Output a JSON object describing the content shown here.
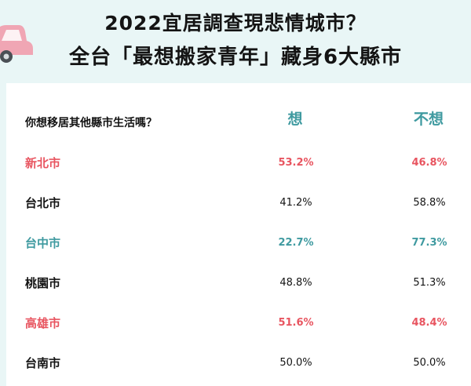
{
  "title_line1": "2022宜居調查現悲情城市？",
  "title_line2": "全台「最想搬家青年」藏身6大縣市",
  "chart_data": {
    "type": "table",
    "question": "你想移居其他縣市生活嗎？",
    "columns": [
      "想",
      "不想"
    ],
    "rows": [
      {
        "city": "新北市",
        "want": "53.2%",
        "not_want": "46.8%",
        "color": "#e85560",
        "highlight": true
      },
      {
        "city": "台北市",
        "want": "41.2%",
        "not_want": "58.8%",
        "color": "#141414",
        "highlight": false
      },
      {
        "city": "台中市",
        "want": "22.7%",
        "not_want": "77.3%",
        "color": "#3f9aa0",
        "highlight": true
      },
      {
        "city": "桃園市",
        "want": "48.8%",
        "not_want": "51.3%",
        "color": "#141414",
        "highlight": false
      },
      {
        "city": "高雄市",
        "want": "51.6%",
        "not_want": "48.4%",
        "color": "#e85560",
        "highlight": true
      },
      {
        "city": "台南市",
        "want": "50.0%",
        "not_want": "50.0%",
        "color": "#141414",
        "highlight": false
      }
    ]
  },
  "colors": {
    "background": "#e9f6f6",
    "teal": "#3f9aa0",
    "red": "#e85560",
    "car": "#f0a6b4"
  },
  "icon": "car-icon"
}
